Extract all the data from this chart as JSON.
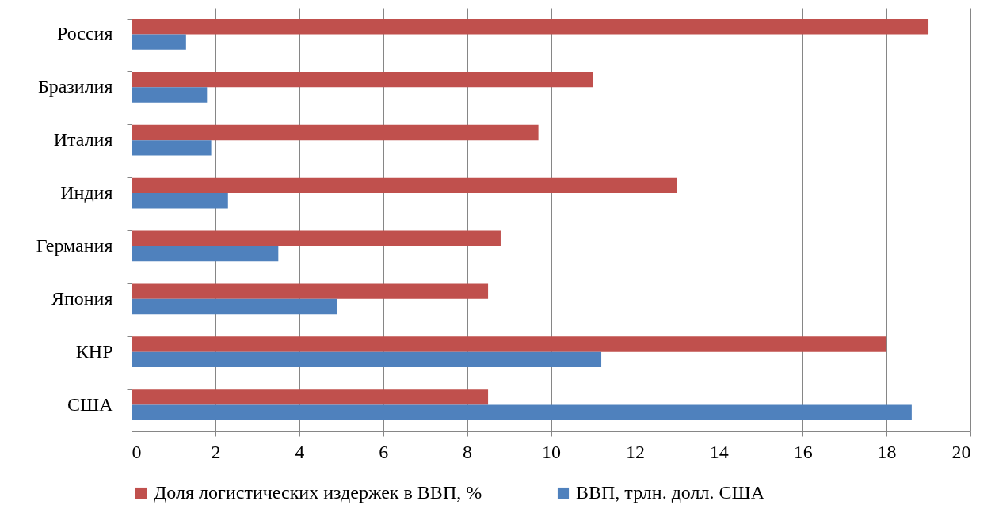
{
  "chart_data": {
    "type": "bar",
    "orientation": "horizontal",
    "categories": [
      "Россия",
      "Бразилия",
      "Италия",
      "Индия",
      "Германия",
      "Япония",
      "КНР",
      "США"
    ],
    "series": [
      {
        "name": "Доля логистических издержек в ВВП, %",
        "color": "#c0504d",
        "values": [
          19,
          11,
          9.7,
          13,
          8.8,
          8.5,
          18,
          8.5
        ]
      },
      {
        "name": "ВВП, трлн. долл. США",
        "color": "#4f81bd",
        "values": [
          1.3,
          1.8,
          1.9,
          2.3,
          3.5,
          4.9,
          11.2,
          18.6
        ]
      }
    ],
    "xlim": [
      0,
      20
    ],
    "xticks": [
      0,
      2,
      4,
      6,
      8,
      10,
      12,
      14,
      16,
      18,
      20
    ],
    "grid": "x",
    "legend": "bottom"
  }
}
